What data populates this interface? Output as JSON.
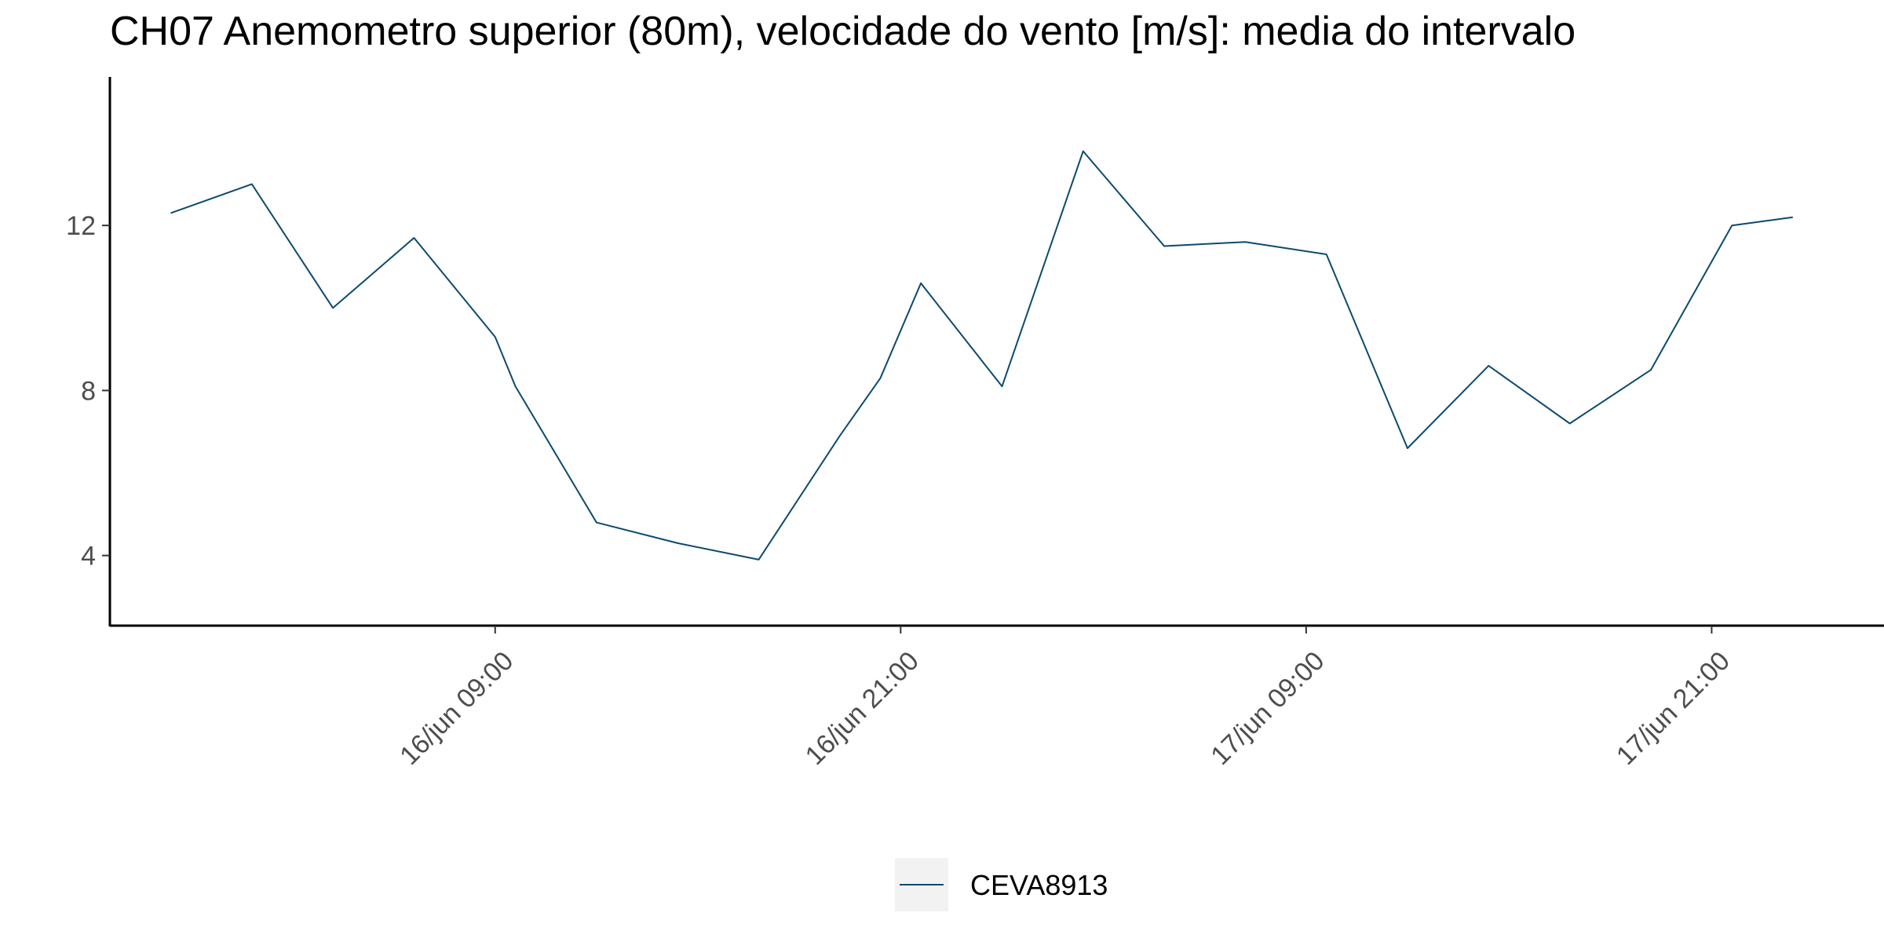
{
  "chart_data": {
    "type": "line",
    "title": "CH07 Anemometro superior (80m), velocidade do vento [m/s]: media do intervalo",
    "xlabel": "",
    "ylabel": "",
    "x_tick_labels": [
      "16/jun 09:00",
      "16/jun 21:00",
      "17/jun 09:00",
      "17/jun 21:00"
    ],
    "x_tick_hours": [
      9,
      21,
      33,
      45
    ],
    "y_ticks": [
      4,
      8,
      12
    ],
    "xlim_hours": [
      -2.4,
      50.1
    ],
    "ylim": [
      2.3,
      15.6
    ],
    "grid": false,
    "legend_position": "bottom",
    "series": [
      {
        "name": "CEVA8913",
        "color": "#0c4a6e",
        "hours": [
          -0.6,
          1.8,
          4.2,
          6.6,
          9.0,
          9.6,
          12.0,
          14.4,
          16.8,
          19.2,
          20.4,
          21.6,
          24.0,
          26.4,
          28.8,
          31.2,
          33.6,
          36.0,
          38.4,
          40.8,
          43.2,
          45.6,
          47.4
        ],
        "values": [
          12.3,
          13.0,
          10.0,
          11.7,
          9.3,
          8.1,
          4.8,
          4.3,
          3.9,
          6.9,
          8.3,
          10.6,
          8.1,
          13.8,
          11.5,
          11.6,
          11.3,
          6.6,
          8.6,
          7.2,
          8.5,
          12.0,
          12.2
        ]
      }
    ]
  }
}
